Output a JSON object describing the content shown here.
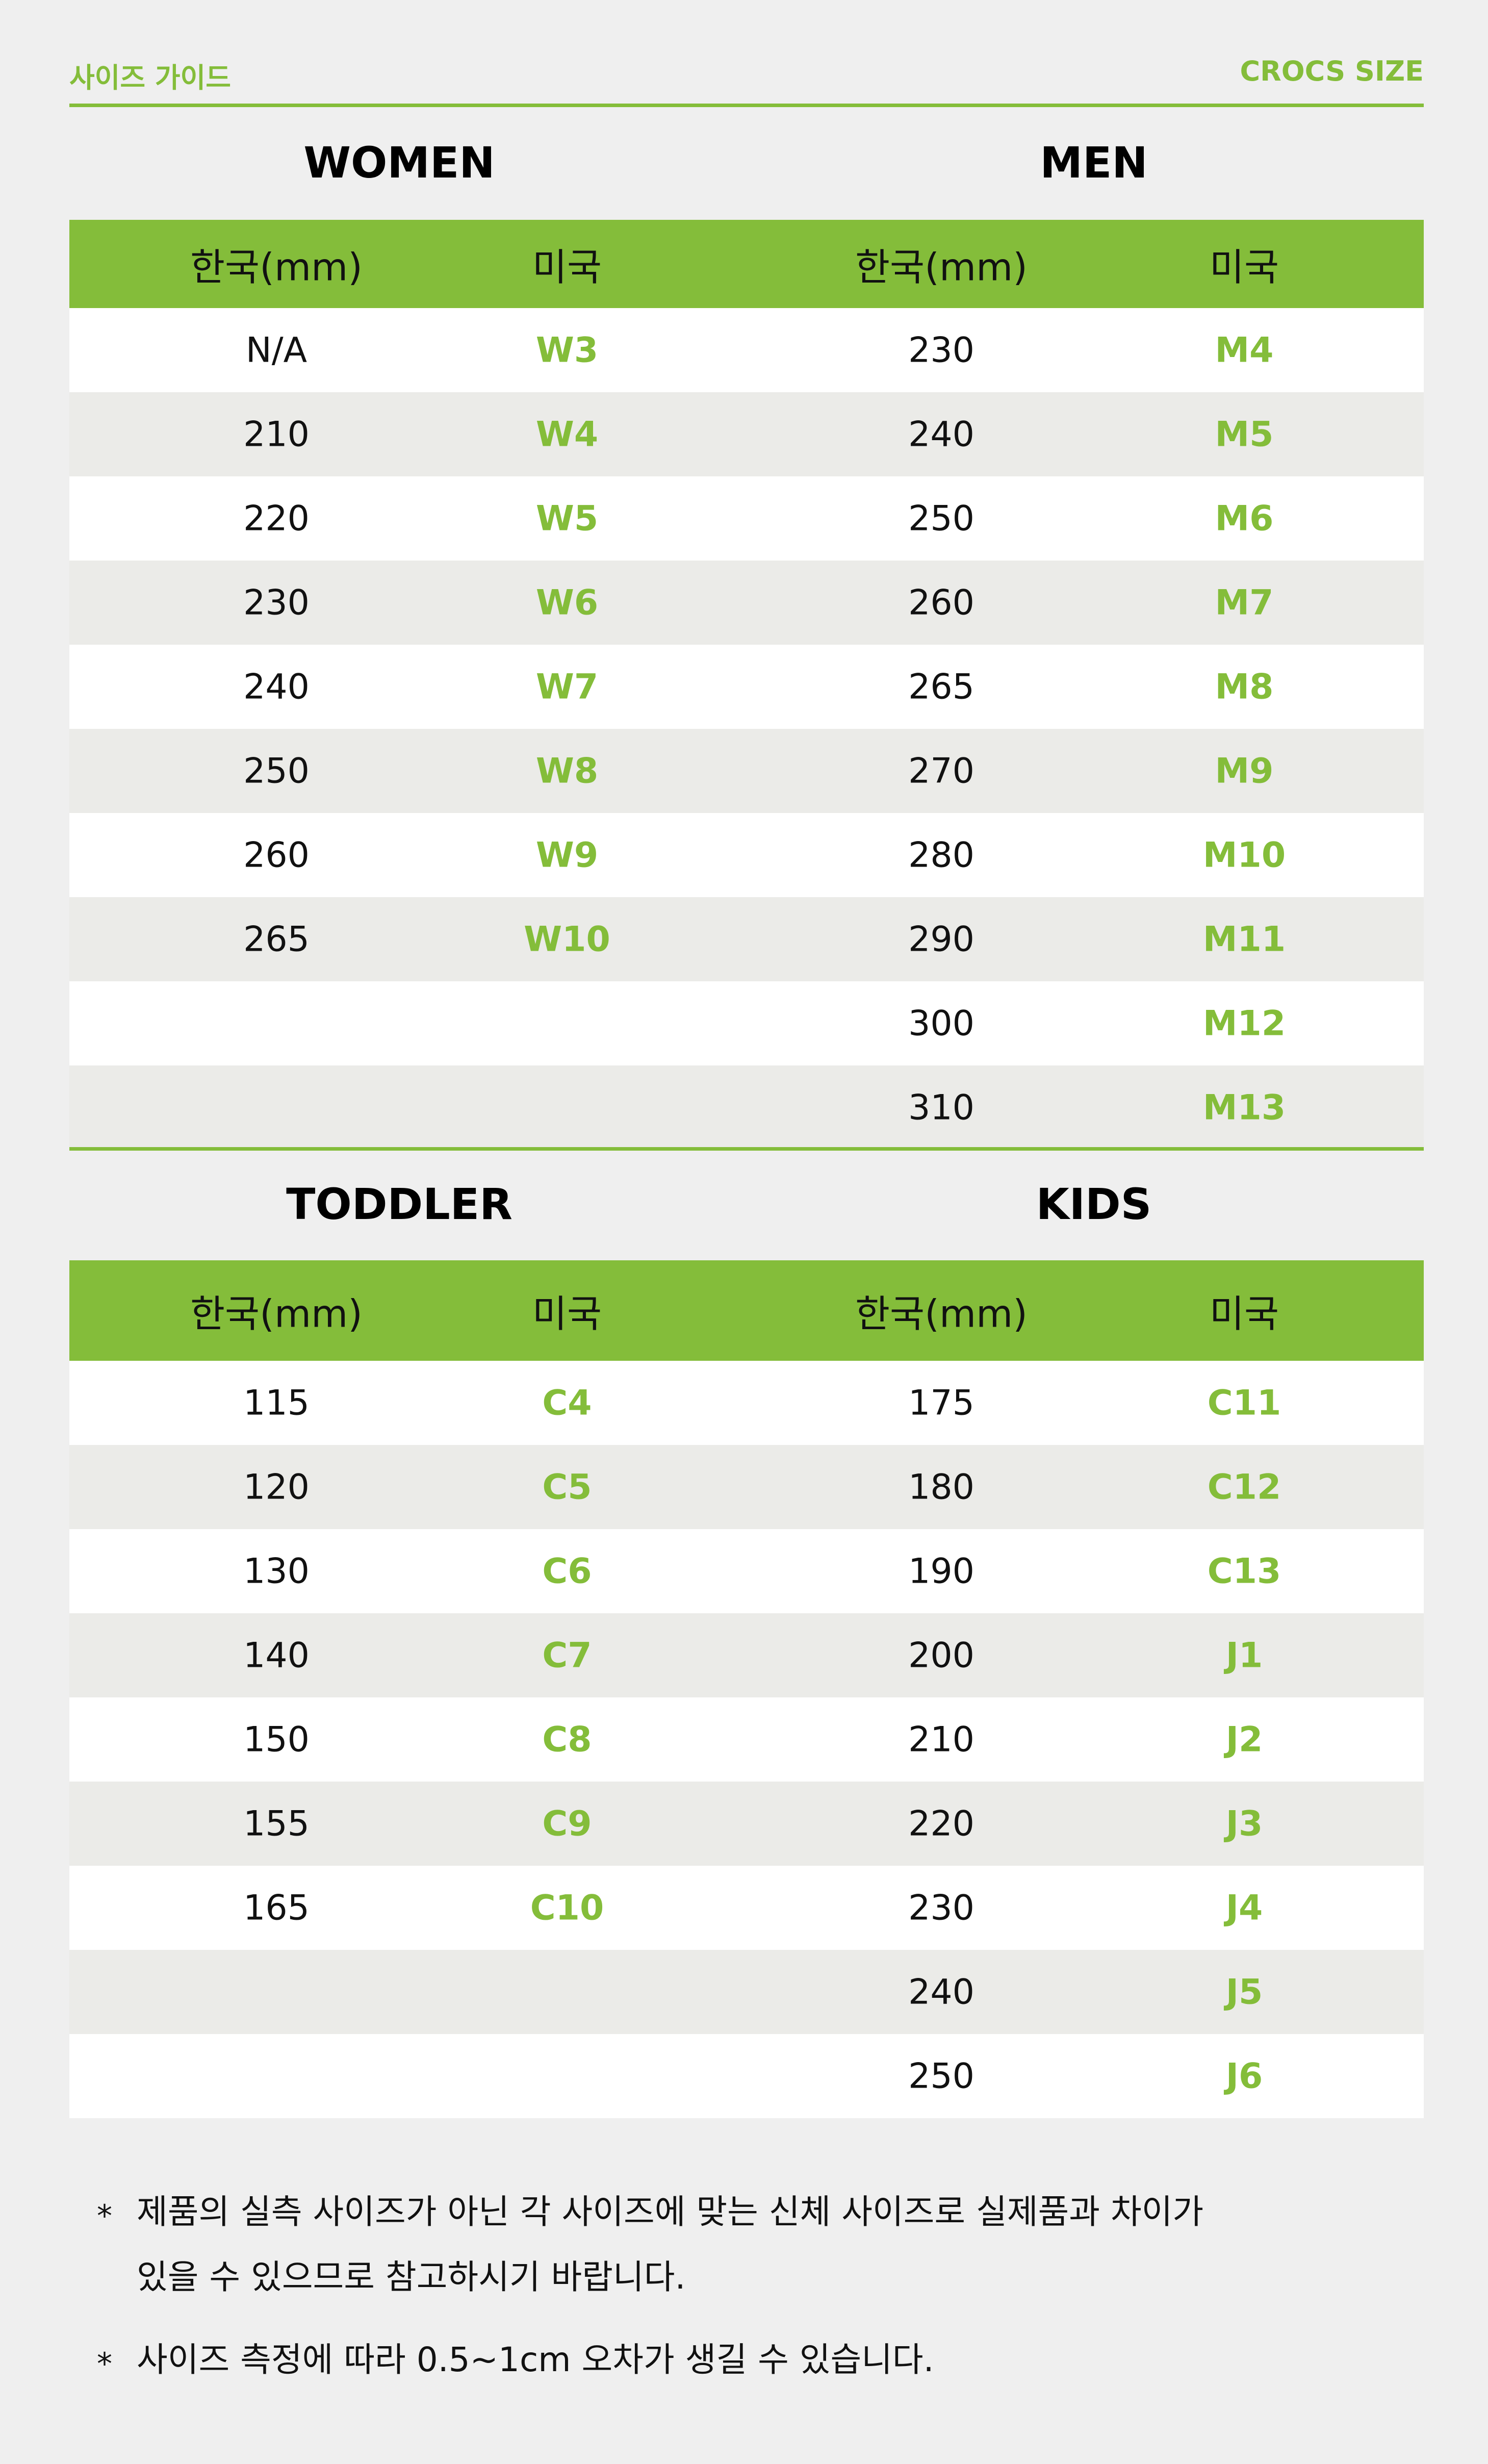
{
  "header": {
    "left": "사이즈 가이드",
    "right": "CROCS SIZE"
  },
  "colors": {
    "accent": "#84bd3a",
    "background": "#efefef",
    "row_alt": "#ebebe8"
  },
  "columns": {
    "korea": "한국(mm)",
    "us": "미국"
  },
  "women": {
    "title": "WOMEN",
    "rows": [
      [
        "N/A",
        "W3"
      ],
      [
        "210",
        "W4"
      ],
      [
        "220",
        "W5"
      ],
      [
        "230",
        "W6"
      ],
      [
        "240",
        "W7"
      ],
      [
        "250",
        "W8"
      ],
      [
        "260",
        "W9"
      ],
      [
        "265",
        "W10"
      ],
      [
        "",
        ""
      ],
      [
        "",
        ""
      ]
    ]
  },
  "men": {
    "title": "MEN",
    "rows": [
      [
        "230",
        "M4"
      ],
      [
        "240",
        "M5"
      ],
      [
        "250",
        "M6"
      ],
      [
        "260",
        "M7"
      ],
      [
        "265",
        "M8"
      ],
      [
        "270",
        "M9"
      ],
      [
        "280",
        "M10"
      ],
      [
        "290",
        "M11"
      ],
      [
        "300",
        "M12"
      ],
      [
        "310",
        "M13"
      ]
    ]
  },
  "toddler": {
    "title": "TODDLER",
    "rows": [
      [
        "115",
        "C4"
      ],
      [
        "120",
        "C5"
      ],
      [
        "130",
        "C6"
      ],
      [
        "140",
        "C7"
      ],
      [
        "150",
        "C8"
      ],
      [
        "155",
        "C9"
      ],
      [
        "165",
        "C10"
      ],
      [
        "",
        ""
      ],
      [
        "",
        ""
      ]
    ]
  },
  "kids": {
    "title": "KIDS",
    "rows": [
      [
        "175",
        "C11"
      ],
      [
        "180",
        "C12"
      ],
      [
        "190",
        "C13"
      ],
      [
        "200",
        "J1"
      ],
      [
        "210",
        "J2"
      ],
      [
        "220",
        "J3"
      ],
      [
        "230",
        "J4"
      ],
      [
        "240",
        "J5"
      ],
      [
        "250",
        "J6"
      ]
    ]
  },
  "notes": {
    "bullet": "*",
    "note1_line1": "제품의 실측 사이즈가 아닌 각 사이즈에 맞는 신체 사이즈로 실제품과 차이가",
    "note1_line2": "있을 수 있으므로 참고하시기 바랍니다.",
    "note2": "사이즈 측정에 따라 0.5~1cm 오차가 생길 수 있습니다."
  }
}
